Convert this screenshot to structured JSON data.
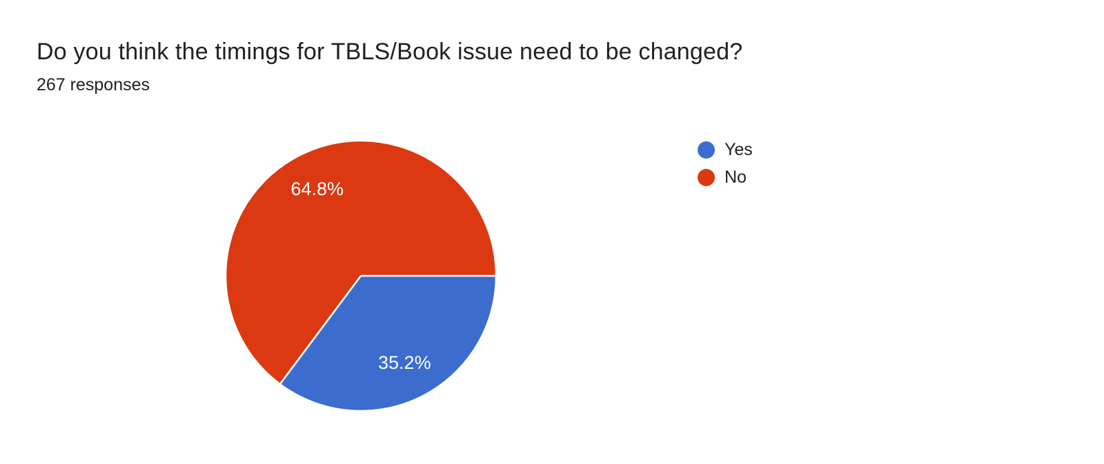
{
  "chart_data": {
    "type": "pie",
    "title": "Do you think the timings for TBLS/Book issue need to be changed?",
    "subtitle": "267 responses",
    "total_responses": 267,
    "start_angle_deg": 0,
    "direction": "clockwise",
    "legend_position": "right",
    "slice_border_color": "#ffffff",
    "label_color": "#ffffff",
    "slices": [
      {
        "label": "Yes",
        "value_pct": 35.2,
        "display": "35.2%",
        "color": "#3b6cce"
      },
      {
        "label": "No",
        "value_pct": 64.8,
        "display": "64.8%",
        "color": "#dc3912"
      }
    ]
  }
}
